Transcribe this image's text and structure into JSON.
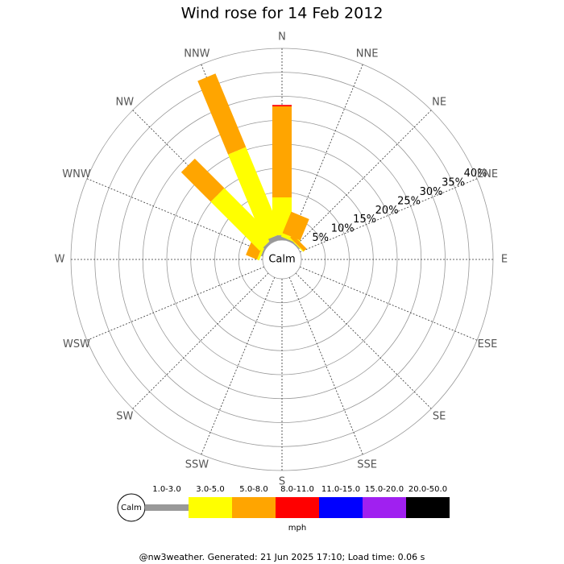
{
  "chart_data": {
    "type": "windrose",
    "title": "Wind rose for 14 Feb 2012",
    "categories": [
      "N",
      "NNE",
      "NE",
      "ENE",
      "E",
      "ESE",
      "SE",
      "SSE",
      "S",
      "SSW",
      "SW",
      "WSW",
      "W",
      "WNW",
      "NW",
      "NNW"
    ],
    "calm_label": "Calm",
    "unit": "mph",
    "rlim": [
      0,
      40
    ],
    "rticks": [
      {
        "value": 5,
        "label": "5%"
      },
      {
        "value": 10,
        "label": "10%"
      },
      {
        "value": 15,
        "label": "15%"
      },
      {
        "value": 20,
        "label": "20%"
      },
      {
        "value": 25,
        "label": "25%"
      },
      {
        "value": 30,
        "label": "30%"
      },
      {
        "value": 35,
        "label": "35%"
      },
      {
        "value": 40,
        "label": "40%"
      }
    ],
    "series": [
      {
        "name": "1.0-3.0",
        "color": "#999999",
        "values": [
          1.0,
          0.3,
          0.2,
          0,
          0,
          0,
          0,
          0,
          0,
          0,
          0,
          0,
          0,
          0.3,
          0.5,
          1.0
        ]
      },
      {
        "name": "3.0-5.0",
        "color": "#ffff00",
        "values": [
          7.9,
          0.8,
          0.2,
          0,
          0,
          0,
          0,
          0,
          0,
          0,
          0,
          0,
          0,
          0.5,
          14.5,
          19.5
        ]
      },
      {
        "name": "5.0-8.0",
        "color": "#ffa500",
        "values": [
          19,
          4.8,
          0.8,
          0,
          0,
          0,
          0,
          0,
          0,
          0,
          0,
          0,
          0,
          2.5,
          8.7,
          16.6
        ]
      },
      {
        "name": "8.0-11.0",
        "color": "#ff0000",
        "values": [
          0.3,
          0,
          0,
          0,
          0,
          0,
          0,
          0,
          0,
          0,
          0,
          0,
          0,
          0,
          0,
          0
        ]
      },
      {
        "name": "11.0-15.0",
        "color": "#0000ff",
        "values": [
          0,
          0,
          0,
          0,
          0,
          0,
          0,
          0,
          0,
          0,
          0,
          0,
          0,
          0,
          0,
          0
        ]
      },
      {
        "name": "15.0-20.0",
        "color": "#a020f0",
        "values": [
          0,
          0,
          0,
          0,
          0,
          0,
          0,
          0,
          0,
          0,
          0,
          0,
          0,
          0,
          0,
          0
        ]
      },
      {
        "name": "20.0-50.0",
        "color": "#000000",
        "values": [
          0,
          0,
          0,
          0,
          0,
          0,
          0,
          0,
          0,
          0,
          0,
          0,
          0,
          0,
          0,
          0
        ]
      }
    ],
    "footer": "@nw3weather. Generated: 21 Jun 2025 17:10; Load time: 0.06 s"
  }
}
